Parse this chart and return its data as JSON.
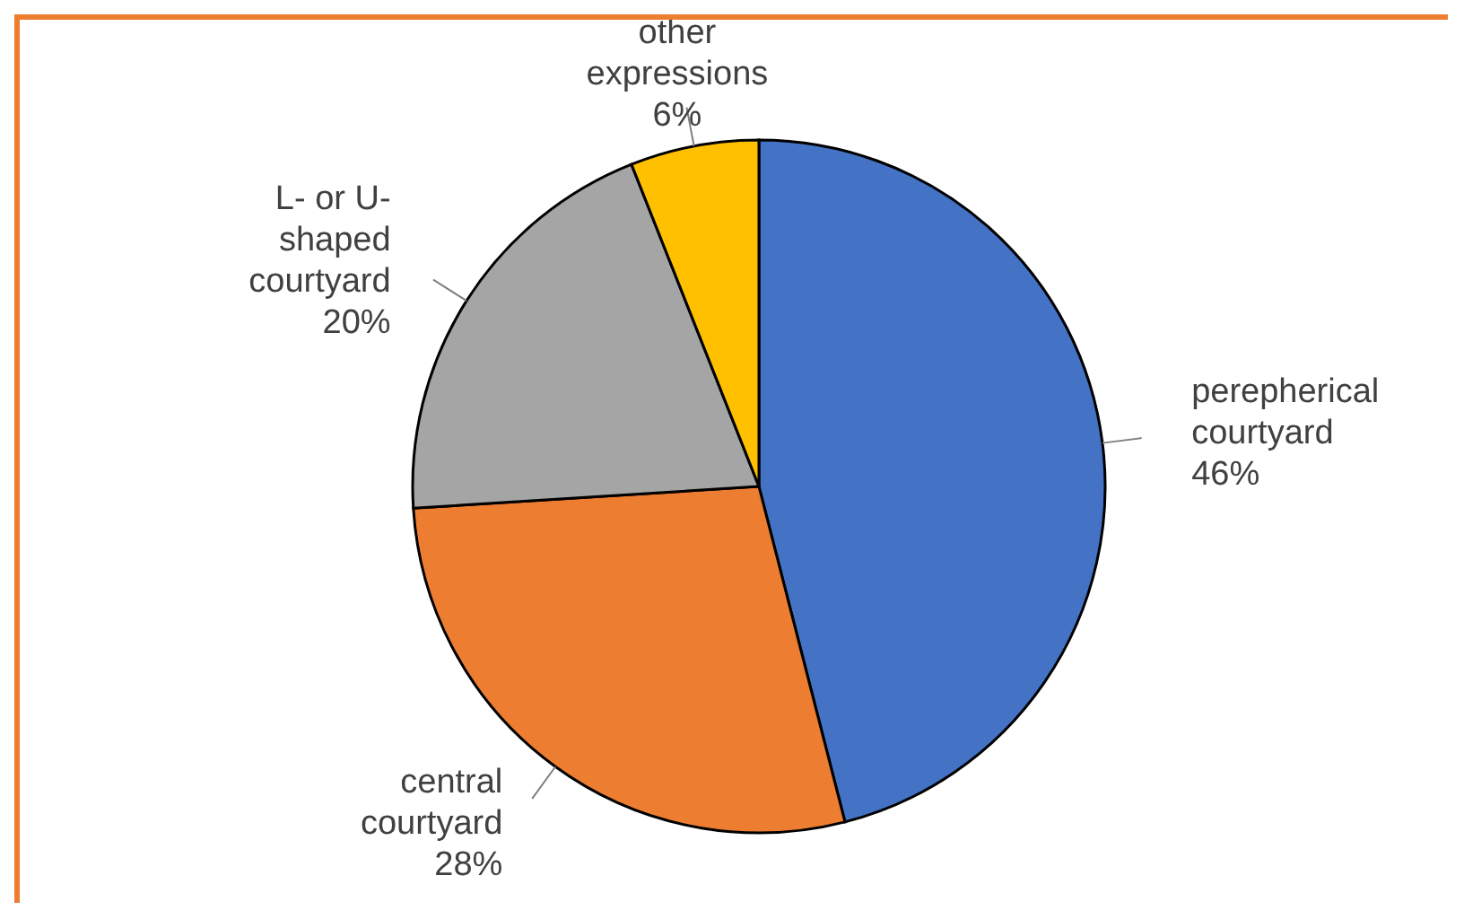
{
  "chart_data": {
    "type": "pie",
    "categories": [
      "perepherical courtyard",
      "central courtyard",
      "L- or U- shaped courtyard",
      "other expressions"
    ],
    "values": [
      46,
      28,
      20,
      6
    ],
    "colors": [
      "#4472c4",
      "#ed7d31",
      "#a5a5a5",
      "#ffc000"
    ],
    "value_labels": [
      "46%",
      "28%",
      "20%",
      "6%"
    ],
    "legend": false
  }
}
